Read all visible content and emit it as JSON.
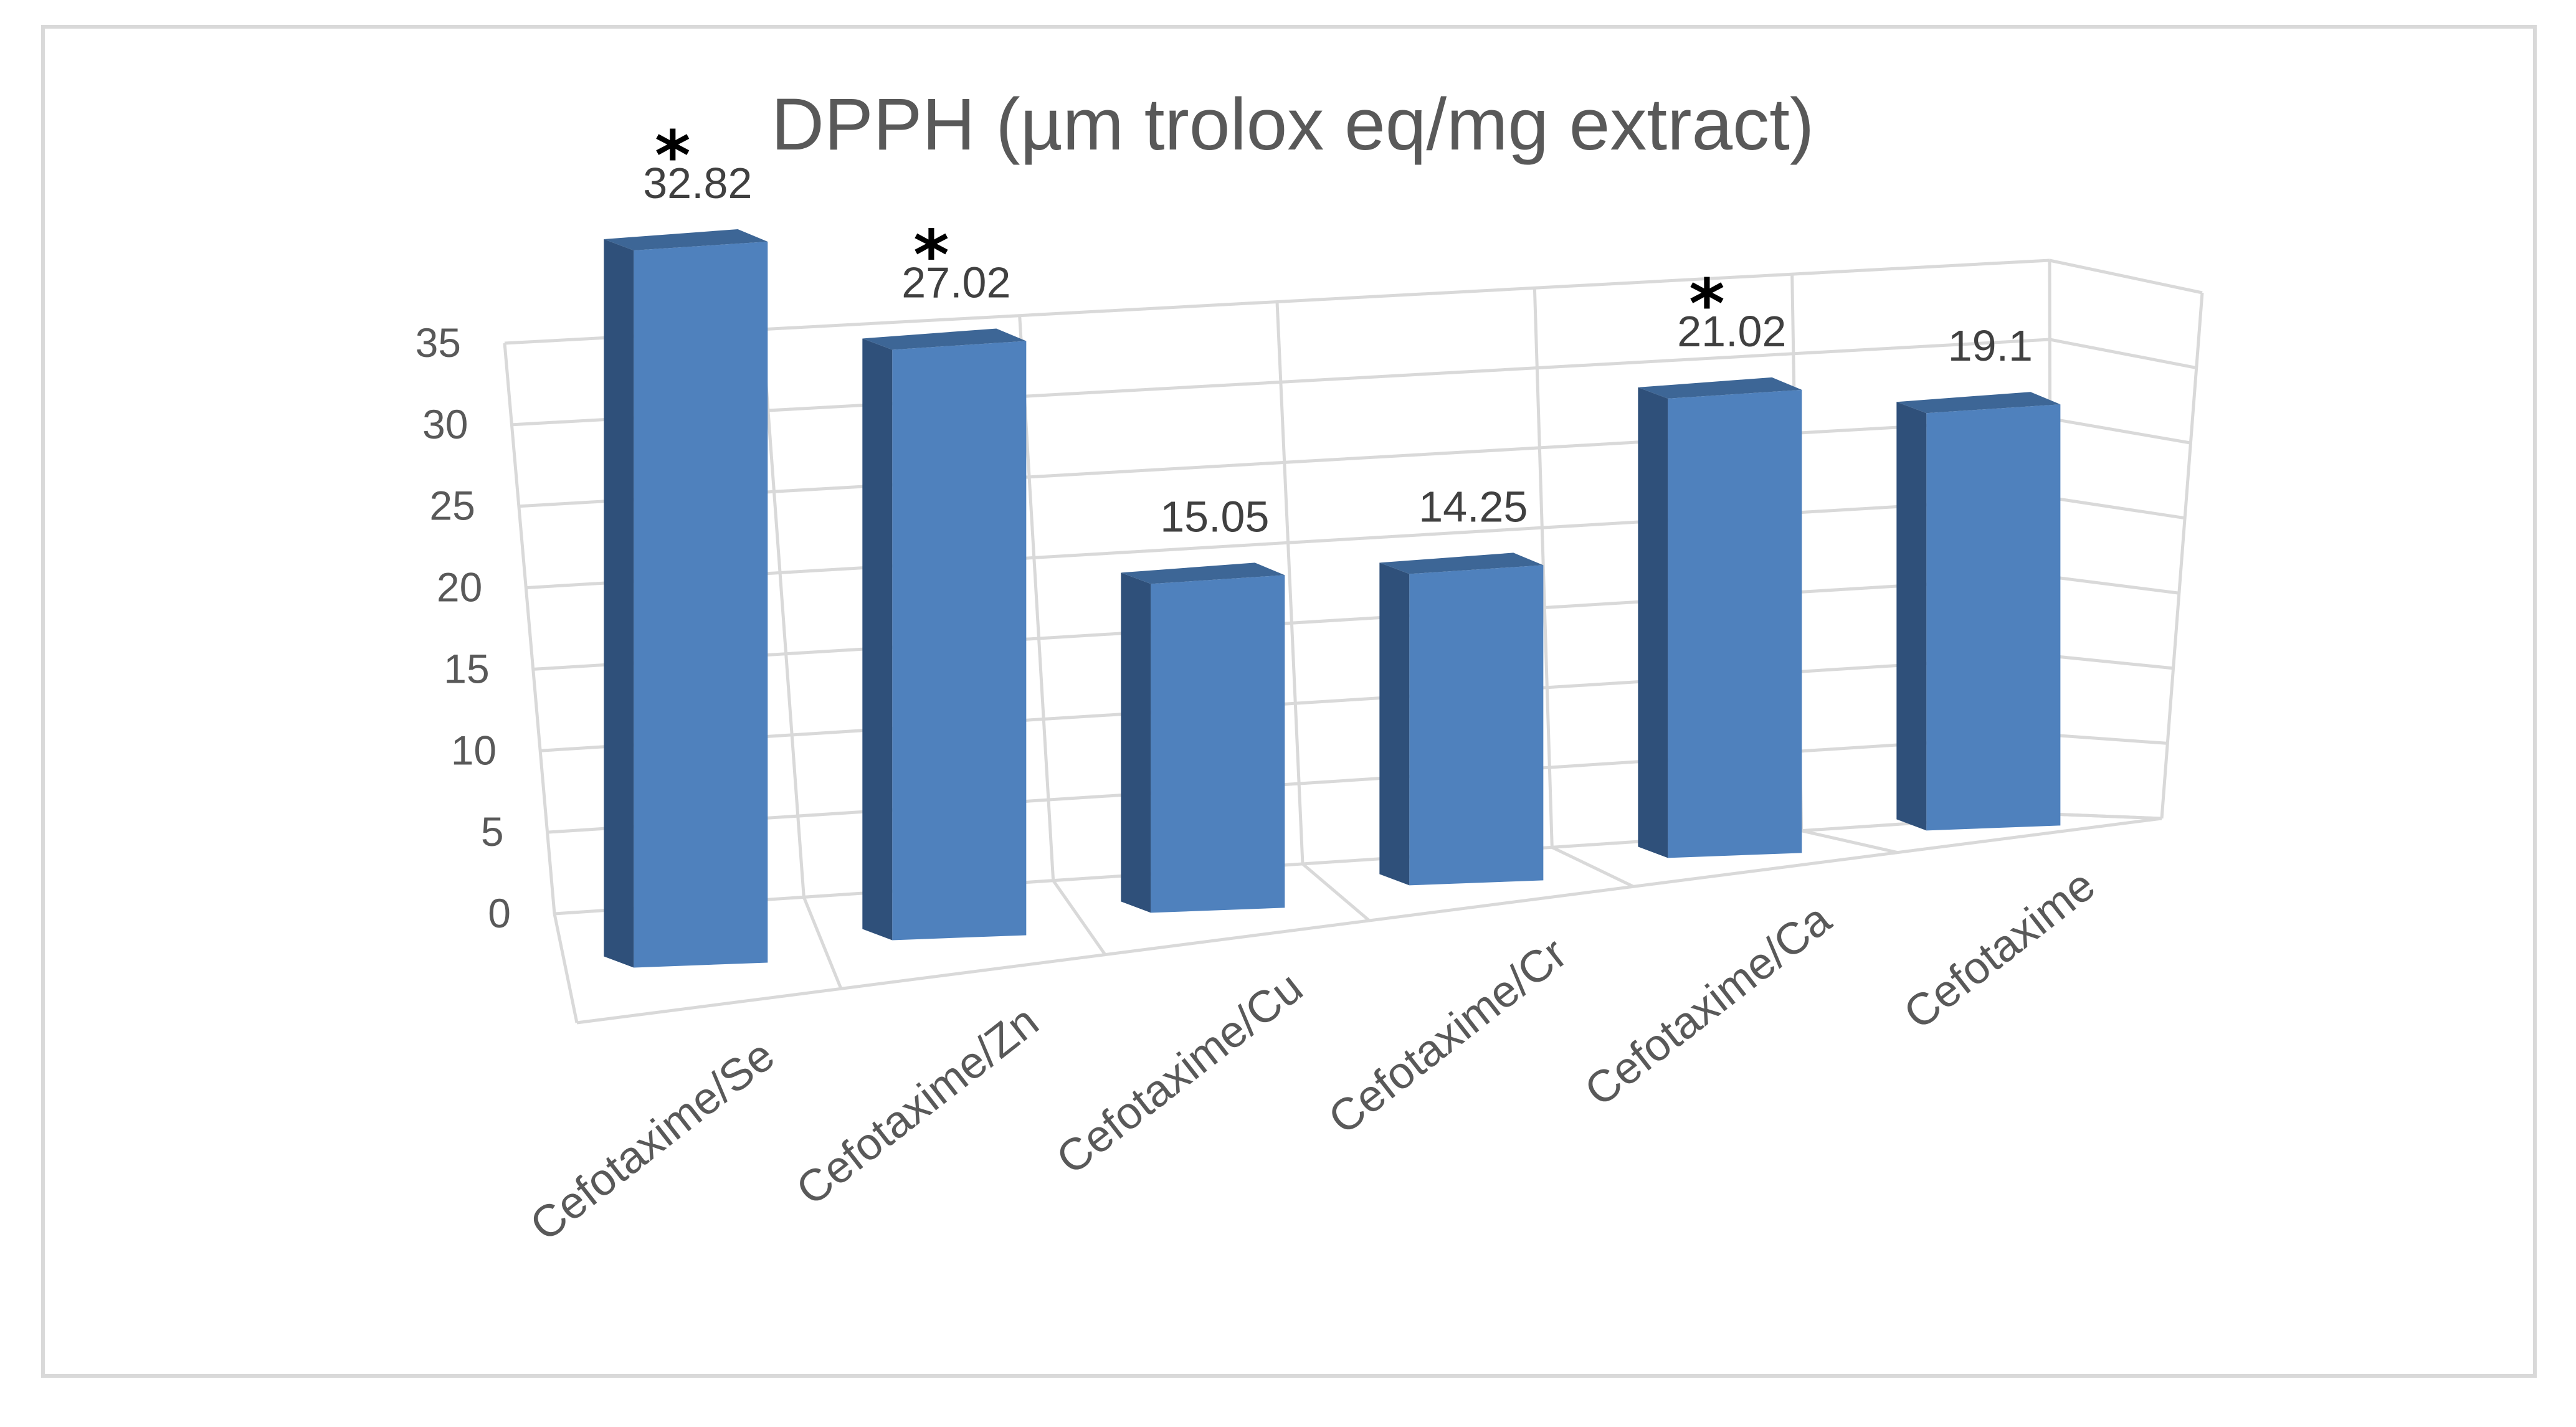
{
  "chart_data": {
    "type": "bar",
    "title": "DPPH (µm trolox eq/mg extract)",
    "xlabel": "",
    "ylabel": "",
    "ylim": [
      0,
      35
    ],
    "yticks": [
      "0",
      "5",
      "10",
      "15",
      "20",
      "25",
      "30",
      "35"
    ],
    "categories": [
      "Cefotaxime/Se",
      "Cefotaxime/Zn",
      "Cefotaxime/Cu",
      "Cefotaxime/Cr",
      "Cefotaxime/Ca",
      "Cefotaxime"
    ],
    "values": [
      32.82,
      27.02,
      15.05,
      14.25,
      21.02,
      19.1
    ],
    "value_labels": [
      "32.82",
      "27.02",
      "15.05",
      "14.25",
      "21.02",
      "19.1"
    ],
    "significance": [
      "*",
      "*",
      "",
      "",
      "*",
      ""
    ],
    "grid": true,
    "legend": "none",
    "style": "3d-column"
  },
  "colors": {
    "bar_front": "#4f81bd",
    "bar_side": "#2f507a",
    "bar_top": "#3d6696",
    "grid": "#d9d9d9",
    "text": "#595959"
  }
}
